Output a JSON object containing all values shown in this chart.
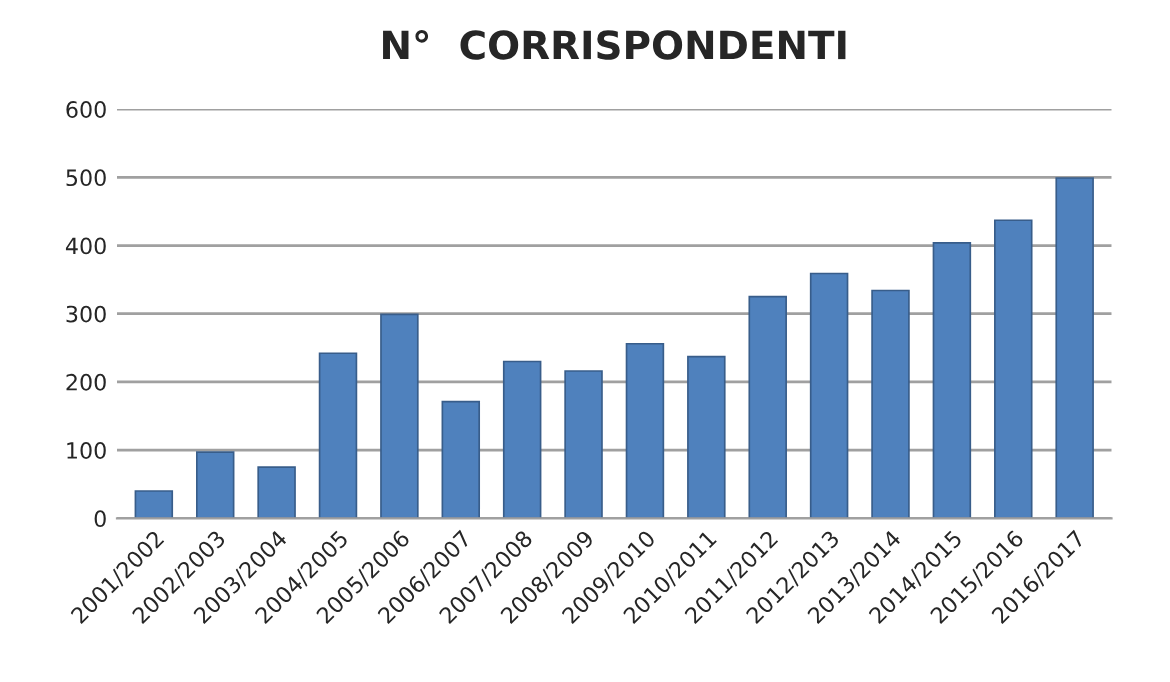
{
  "chart_data": {
    "type": "bar",
    "title": "N°  CORRISPONDENTI",
    "categories": [
      "2001/2002",
      "2002/2003",
      "2003/2004",
      "2004/2005",
      "2005/2006",
      "2006/2007",
      "2007/2008",
      "2008/2009",
      "2009/2010",
      "2010/2011",
      "2011/2012",
      "2012/2013",
      "2013/2014",
      "2014/2015",
      "2015/2016",
      "2016/2017"
    ],
    "values": [
      40,
      97,
      75,
      242,
      299,
      171,
      230,
      216,
      256,
      237,
      325,
      359,
      334,
      404,
      437,
      499
    ],
    "color": "#4f81bd",
    "ylim": [
      0,
      600
    ],
    "yticks": [
      0,
      100,
      200,
      300,
      400,
      500,
      600
    ],
    "grid": "y"
  }
}
